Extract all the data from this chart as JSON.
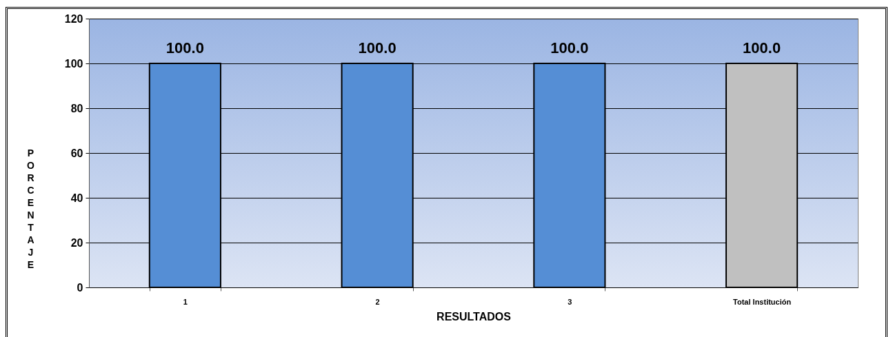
{
  "chart_data": {
    "type": "bar",
    "xlabel": "RESULTADOS",
    "ylabel": "PORCENTAJE",
    "categories": [
      "1",
      "2",
      "3",
      "Total Institución"
    ],
    "values": [
      100,
      100,
      100,
      100
    ],
    "colors": [
      "#558ed5",
      "#558ed5",
      "#558ed5",
      "#c0c0c0"
    ],
    "value_labels": [
      "100.0",
      "100.0",
      "100.0",
      "100.0"
    ],
    "ylim": [
      0,
      120
    ],
    "yticks": [
      0,
      20,
      40,
      60,
      80,
      100,
      120
    ],
    "grid": "y"
  }
}
